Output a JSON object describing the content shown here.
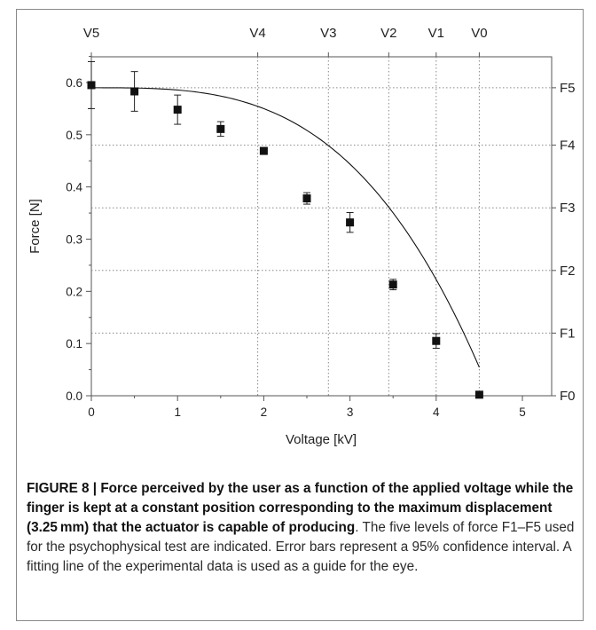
{
  "chart_data": {
    "type": "scatter",
    "xlabel": "Voltage [kV]",
    "ylabel": "Force [N]",
    "xlim": [
      0,
      5
    ],
    "ylim": [
      0,
      0.65
    ],
    "x_ticks": [
      0,
      1,
      2,
      3,
      4,
      5
    ],
    "y_ticks": [
      0.0,
      0.1,
      0.2,
      0.3,
      0.4,
      0.5,
      0.6
    ],
    "points": [
      {
        "x": 0.0,
        "y": 0.595,
        "err": 0.045
      },
      {
        "x": 0.5,
        "y": 0.583,
        "err": 0.038
      },
      {
        "x": 1.0,
        "y": 0.548,
        "err": 0.028
      },
      {
        "x": 1.5,
        "y": 0.511,
        "err": 0.014
      },
      {
        "x": 2.0,
        "y": 0.469,
        "err": 0.005
      },
      {
        "x": 2.5,
        "y": 0.378,
        "err": 0.011
      },
      {
        "x": 3.0,
        "y": 0.332,
        "err": 0.019
      },
      {
        "x": 3.5,
        "y": 0.213,
        "err": 0.01
      },
      {
        "x": 4.0,
        "y": 0.105,
        "err": 0.014
      },
      {
        "x": 4.5,
        "y": 0.002,
        "err": 0.0
      }
    ],
    "fit_line": {
      "a": 0.59,
      "b": 0.00435,
      "p": 3.2
    },
    "voltage_levels": [
      {
        "label": "V5",
        "x": 0.0
      },
      {
        "label": "V4",
        "x": 1.93
      },
      {
        "label": "V3",
        "x": 2.75
      },
      {
        "label": "V2",
        "x": 3.45
      },
      {
        "label": "V1",
        "x": 4.0
      },
      {
        "label": "V0",
        "x": 4.5
      }
    ],
    "force_levels": [
      {
        "label": "F5",
        "y": 0.59
      },
      {
        "label": "F4",
        "y": 0.48
      },
      {
        "label": "F3",
        "y": 0.36
      },
      {
        "label": "F2",
        "y": 0.24
      },
      {
        "label": "F1",
        "y": 0.12
      },
      {
        "label": "F0",
        "y": 0.0
      }
    ],
    "grid": "dotted reference lines at V and F levels"
  },
  "caption": {
    "bold": "FIGURE 8 | Force perceived by the user as a function of the applied voltage while the finger is kept at a constant position corresponding to the maximum displacement (3.25 mm) that the actuator is capable of producing",
    "normal": ". The five levels of force F1–F5 used for the psychophysical test are indicated. Error bars represent a 95% confidence interval. A fitting line of the experimental data is used as a guide for the eye."
  }
}
